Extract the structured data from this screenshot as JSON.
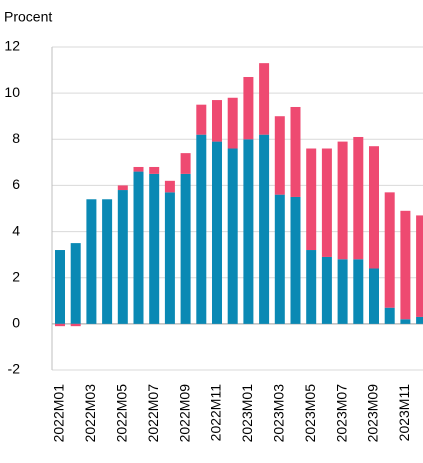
{
  "chart_data": {
    "type": "stacked_bar",
    "y_label": "Procent",
    "categories": [
      "2022M01",
      null,
      "2022M03",
      null,
      "2022M05",
      null,
      "2022M07",
      null,
      "2022M09",
      null,
      "2022M11",
      null,
      "2023M01",
      null,
      "2023M03",
      null,
      "2023M05",
      null,
      "2023M07",
      null,
      "2023M09",
      null,
      "2023M11",
      null
    ],
    "series": [
      {
        "color": "#0a89b4",
        "values": [
          3.2,
          3.5,
          5.4,
          5.4,
          5.8,
          6.6,
          6.5,
          5.7,
          6.5,
          8.2,
          7.9,
          7.6,
          8.0,
          8.2,
          5.6,
          5.5,
          3.2,
          2.9,
          2.8,
          2.8,
          2.4,
          0.7,
          0.2,
          0.3
        ]
      },
      {
        "color": "#ee4a71",
        "values": [
          -0.1,
          -0.1,
          0,
          0,
          0.2,
          0.2,
          0.3,
          0.5,
          0.9,
          1.3,
          1.8,
          2.2,
          2.7,
          3.1,
          3.4,
          3.9,
          4.4,
          4.7,
          5.1,
          5.3,
          5.3,
          5.0,
          4.7,
          4.4
        ]
      }
    ],
    "ylim": [
      -2,
      12
    ],
    "yticks": [
      -2,
      0,
      2,
      4,
      6,
      8,
      10,
      12
    ],
    "grid": true
  }
}
